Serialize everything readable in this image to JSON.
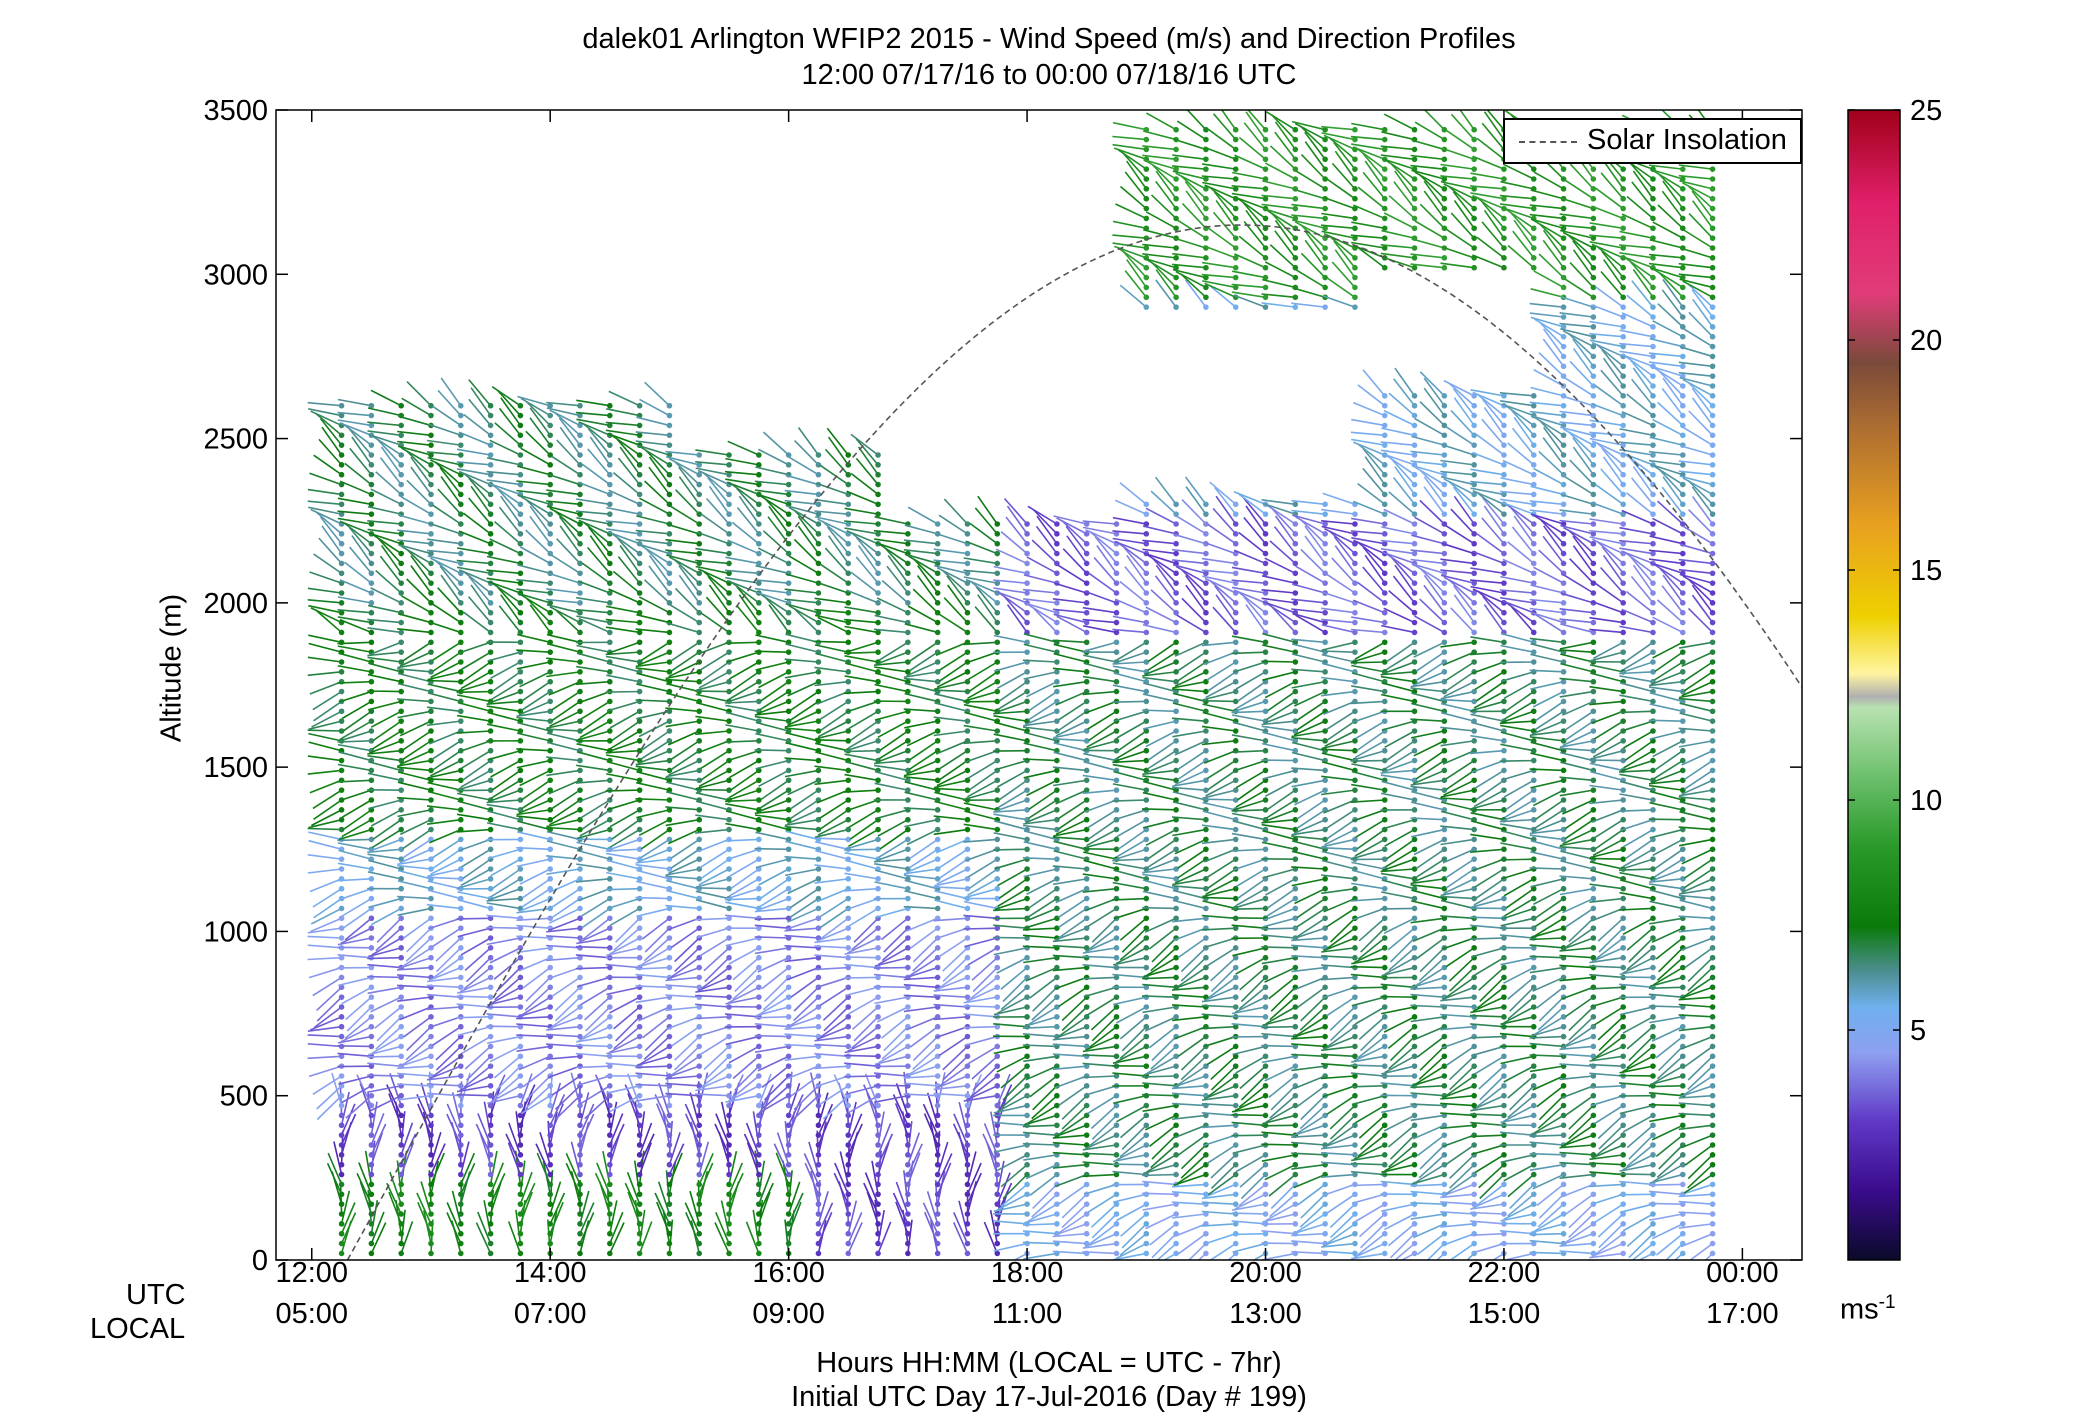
{
  "chart_data": {
    "type": "wind-barb profile",
    "title": "dalek01 Arlington WFIP2 2015 - Wind Speed (m/s) and Direction Profiles",
    "subtitle": "12:00 07/17/16 to 00:00 07/18/16  UTC",
    "ylabel": "Altitude (m)",
    "xlabel_line1": "Hours HH:MM  (LOCAL = UTC - 7hr)",
    "xlabel_line2": "Initial UTC Day 17-Jul-2016 (Day # 199)",
    "x_row_label_utc": "UTC",
    "x_row_label_local": "LOCAL",
    "ylim": [
      0,
      3500
    ],
    "yticks": [
      "0",
      "500",
      "1000",
      "1500",
      "2000",
      "2500",
      "3000",
      "3500"
    ],
    "x_range_hours_utc": [
      11.7,
      24.5
    ],
    "xticks_utc": [
      "12:00",
      "14:00",
      "16:00",
      "18:00",
      "20:00",
      "22:00",
      "00:00"
    ],
    "xticks_local": [
      "05:00",
      "07:00",
      "09:00",
      "11:00",
      "13:00",
      "15:00",
      "17:00"
    ],
    "xtick_hours": [
      12,
      14,
      16,
      18,
      20,
      22,
      24
    ],
    "legend": {
      "label": "Solar Insolation",
      "position": "top-right"
    },
    "solar_insolation": {
      "start_hour": 12.3,
      "peak_hour": 19.8,
      "peak_altitude": 3150,
      "end_hour": 24.5,
      "end_altitude": 1830
    },
    "colorbar": {
      "label_main": "ms",
      "label_sup": "-1",
      "range": [
        0,
        25
      ],
      "ticks": [
        "5",
        "10",
        "15",
        "20",
        "25"
      ],
      "tick_values": [
        5,
        10,
        15,
        20,
        25
      ],
      "stops": [
        [
          0.0,
          "#0a0a2a"
        ],
        [
          0.06,
          "#3a0c8c"
        ],
        [
          0.12,
          "#5f38c6"
        ],
        [
          0.18,
          "#8e9ff0"
        ],
        [
          0.22,
          "#6fb0ee"
        ],
        [
          0.25,
          "#4e8f94"
        ],
        [
          0.29,
          "#0a7a0a"
        ],
        [
          0.36,
          "#2a9a2a"
        ],
        [
          0.42,
          "#6cc06c"
        ],
        [
          0.48,
          "#b8e2b0"
        ],
        [
          0.49,
          "#b0b0b0"
        ],
        [
          0.51,
          "#fff5a0"
        ],
        [
          0.56,
          "#eed000"
        ],
        [
          0.64,
          "#e8a020"
        ],
        [
          0.72,
          "#b07030"
        ],
        [
          0.78,
          "#7a4a3a"
        ],
        [
          0.84,
          "#e03c78"
        ],
        [
          0.92,
          "#e0206a"
        ],
        [
          1.0,
          "#a0001a"
        ]
      ]
    },
    "wind_speed_regime": [
      {
        "altitude_range": [
          0,
          450
        ],
        "time_range": "12:00-18:00",
        "speed_ms": "1-4"
      },
      {
        "altitude_range": [
          0,
          250
        ],
        "time_range": "12:00-16:00",
        "speed_ms": "6-8"
      },
      {
        "altitude_range": [
          500,
          1050
        ],
        "time_range": "12:00-18:00",
        "speed_ms": "2-4"
      },
      {
        "altitude_range": [
          1050,
          1300
        ],
        "time_range": "12:00-00:00",
        "speed_ms": "4-6"
      },
      {
        "altitude_range": [
          1300,
          2000
        ],
        "time_range": "12:00-20:00",
        "speed_ms": "5-8"
      },
      {
        "altitude_range": [
          0,
          1900
        ],
        "time_range": "18:00-00:00",
        "speed_ms": "5-8"
      },
      {
        "altitude_range": [
          2000,
          2250
        ],
        "time_range": "18:00-00:00",
        "speed_ms": "2-4"
      },
      {
        "altitude_range": [
          2900,
          3500
        ],
        "time_range": "19:00-23:30",
        "speed_ms": "7-10"
      }
    ],
    "grid": false
  }
}
